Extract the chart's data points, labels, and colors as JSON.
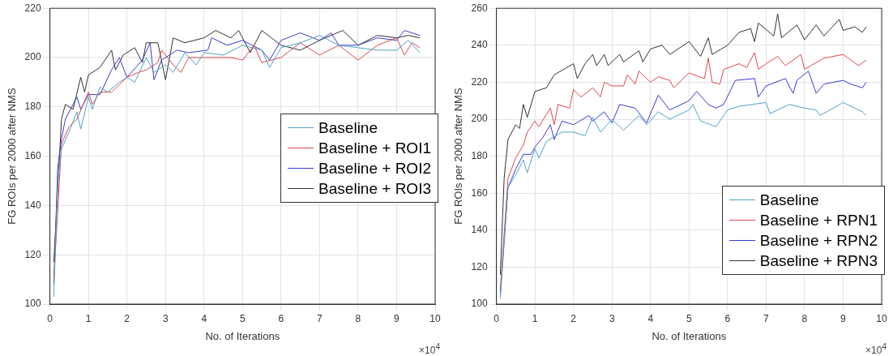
{
  "chart_data": [
    {
      "type": "line",
      "xlabel": "No. of Iterations",
      "ylabel": "FG ROIs per 2000 after NMS",
      "xlim": [
        0,
        10
      ],
      "xticks": [
        0,
        1,
        2,
        3,
        4,
        5,
        6,
        7,
        8,
        9,
        10
      ],
      "ylim": [
        100,
        220
      ],
      "yticks": [
        100,
        120,
        140,
        160,
        180,
        200,
        220
      ],
      "grid": true,
      "legend": "right",
      "annotations": [
        "×10$^{4}$"
      ],
      "series": [
        {
          "name": "Baseline",
          "color": "#4fa3c7",
          "x": [
            0.1,
            0.2,
            0.3,
            0.5,
            0.7,
            0.8,
            1.0,
            1.1,
            1.3,
            1.5,
            1.8,
            2.0,
            2.2,
            2.5,
            2.7,
            3.0,
            3.2,
            3.5,
            3.8,
            4.0,
            4.5,
            5.0,
            5.5,
            5.7,
            6.0,
            6.5,
            7.0,
            7.5,
            8.0,
            8.5,
            9.0,
            9.3,
            9.6
          ],
          "values": [
            103,
            150,
            163,
            170,
            178,
            171,
            184,
            179,
            188,
            186,
            190,
            192,
            190,
            200,
            194,
            197,
            194,
            202,
            197,
            202,
            201,
            205,
            203,
            196,
            204,
            206,
            209,
            205,
            204,
            203,
            203,
            207,
            202
          ]
        },
        {
          "name": "Baseline + ROI1",
          "color": "#e0474c",
          "x": [
            0.1,
            0.3,
            0.5,
            0.7,
            1.0,
            1.1,
            1.3,
            1.6,
            1.8,
            2.0,
            2.3,
            2.5,
            2.8,
            2.9,
            3.2,
            3.4,
            3.6,
            4.0,
            4.3,
            4.7,
            5.0,
            5.3,
            5.5,
            6.0,
            6.5,
            7.0,
            7.5,
            8.0,
            8.5,
            9.0,
            9.2,
            9.4,
            9.6
          ],
          "values": [
            110,
            165,
            172,
            175,
            186,
            181,
            186,
            186,
            189,
            192,
            194,
            195,
            198,
            203,
            197,
            194,
            200,
            200,
            200,
            200,
            199,
            205,
            198,
            200,
            206,
            201,
            205,
            199,
            205,
            208,
            201,
            206,
            204
          ]
        },
        {
          "name": "Baseline + ROI2",
          "color": "#3b3bd6",
          "x": [
            0.1,
            0.2,
            0.3,
            0.4,
            0.7,
            0.8,
            1.0,
            1.3,
            1.6,
            1.8,
            2.0,
            2.4,
            2.6,
            2.7,
            2.9,
            3.3,
            3.6,
            4.1,
            4.2,
            4.6,
            5.0,
            5.5,
            5.7,
            6.0,
            6.5,
            7.0,
            7.3,
            7.5,
            8.0,
            8.5,
            9.0,
            9.2,
            9.6
          ],
          "values": [
            108,
            155,
            167,
            175,
            184,
            179,
            185,
            185,
            195,
            200,
            192,
            199,
            206,
            191,
            199,
            203,
            202,
            203,
            208,
            205,
            207,
            203,
            199,
            207,
            210,
            207,
            210,
            205,
            205,
            208,
            207,
            211,
            209
          ]
        },
        {
          "name": "Baseline + ROI3",
          "color": "#333333",
          "x": [
            0.1,
            0.3,
            0.4,
            0.6,
            0.8,
            0.9,
            1.0,
            1.3,
            1.6,
            1.7,
            1.9,
            2.2,
            2.4,
            2.5,
            2.8,
            3.0,
            3.2,
            3.5,
            4.0,
            4.3,
            4.7,
            4.9,
            5.2,
            5.5,
            6.0,
            6.5,
            7.0,
            7.6,
            8.0,
            8.5,
            9.0,
            9.3,
            9.6
          ],
          "values": [
            117,
            175,
            181,
            179,
            192,
            186,
            193,
            196,
            203,
            195,
            201,
            204,
            198,
            206,
            206,
            191,
            208,
            206,
            208,
            211,
            208,
            211,
            202,
            211,
            205,
            203,
            207,
            211,
            205,
            209,
            208,
            209,
            208
          ]
        }
      ]
    },
    {
      "type": "line",
      "xlabel": "No. of Iterations",
      "ylabel": "FG ROIs per 2000 after NMS",
      "xlim": [
        0,
        10
      ],
      "xticks": [
        0,
        1,
        2,
        3,
        4,
        5,
        6,
        7,
        8,
        9,
        10
      ],
      "ylim": [
        100,
        260
      ],
      "yticks": [
        100,
        120,
        140,
        160,
        180,
        200,
        220,
        240,
        260
      ],
      "grid": true,
      "legend": "bottom right",
      "annotations": [
        "×10$^{4}$"
      ],
      "series": [
        {
          "name": "Baseline",
          "color": "#4fa3c7",
          "x": [
            0.1,
            0.3,
            0.5,
            0.7,
            0.8,
            1.0,
            1.1,
            1.3,
            1.7,
            2.0,
            2.3,
            2.5,
            2.7,
            3.0,
            3.3,
            3.7,
            3.9,
            4.2,
            4.5,
            5.0,
            5.1,
            5.3,
            5.7,
            6.0,
            6.3,
            7.0,
            7.1,
            7.6,
            8.0,
            8.3,
            8.4,
            9.0,
            9.5,
            9.6
          ],
          "values": [
            103,
            163,
            170,
            178,
            171,
            184,
            179,
            188,
            193,
            193,
            191,
            201,
            193,
            200,
            194,
            202,
            197,
            204,
            200,
            205,
            208,
            199,
            196,
            205,
            207,
            209,
            203,
            208,
            206,
            205,
            202,
            209,
            204,
            202
          ]
        },
        {
          "name": "Baseline + RPN1",
          "color": "#e0474c",
          "x": [
            0.1,
            0.3,
            0.5,
            0.7,
            0.8,
            1.0,
            1.1,
            1.4,
            1.5,
            1.6,
            1.9,
            2.0,
            2.2,
            2.5,
            2.7,
            2.8,
            3.0,
            3.3,
            3.4,
            3.6,
            3.7,
            4.0,
            4.2,
            4.5,
            4.6,
            5.0,
            5.4,
            5.5,
            5.6,
            5.8,
            5.9,
            6.3,
            6.5,
            6.7,
            6.8,
            7.0,
            7.3,
            7.5,
            7.9,
            8.0,
            8.5,
            9.0,
            9.4,
            9.6
          ],
          "values": [
            108,
            168,
            179,
            186,
            193,
            199,
            196,
            206,
            197,
            208,
            206,
            216,
            212,
            217,
            212,
            220,
            218,
            218,
            224,
            219,
            226,
            220,
            223,
            221,
            217,
            225,
            222,
            233,
            220,
            219,
            227,
            230,
            228,
            236,
            227,
            230,
            234,
            229,
            235,
            227,
            233,
            235,
            229,
            232
          ]
        },
        {
          "name": "Baseline + RPN2",
          "color": "#3b3bd6",
          "x": [
            0.1,
            0.3,
            0.5,
            0.7,
            0.9,
            1.0,
            1.2,
            1.4,
            1.5,
            1.7,
            2.0,
            2.4,
            2.5,
            2.8,
            3.0,
            3.2,
            3.6,
            3.9,
            4.2,
            4.5,
            5.0,
            5.2,
            5.5,
            5.7,
            5.9,
            6.2,
            6.7,
            6.8,
            7.0,
            7.5,
            7.7,
            7.8,
            8.1,
            8.3,
            8.5,
            9.0,
            9.2,
            9.5,
            9.6
          ],
          "values": [
            105,
            163,
            173,
            181,
            181,
            185,
            190,
            197,
            189,
            199,
            197,
            202,
            199,
            204,
            198,
            208,
            206,
            198,
            213,
            205,
            210,
            215,
            208,
            206,
            208,
            221,
            222,
            212,
            218,
            222,
            214,
            221,
            226,
            214,
            219,
            221,
            219,
            217,
            220
          ]
        },
        {
          "name": "Baseline + RPN3",
          "color": "#333333",
          "x": [
            0.1,
            0.2,
            0.3,
            0.5,
            0.6,
            0.7,
            0.8,
            1.0,
            1.3,
            1.5,
            2.0,
            2.1,
            2.3,
            2.5,
            2.6,
            2.8,
            2.9,
            3.2,
            3.3,
            3.7,
            3.8,
            4.0,
            4.3,
            4.5,
            5.0,
            5.3,
            5.5,
            5.6,
            6.0,
            6.3,
            6.6,
            6.7,
            6.8,
            7.2,
            7.3,
            7.4,
            7.8,
            8.0,
            8.3,
            8.5,
            8.9,
            9.0,
            9.3,
            9.5,
            9.6
          ],
          "values": [
            116,
            168,
            189,
            197,
            195,
            208,
            201,
            215,
            217,
            224,
            230,
            222,
            230,
            235,
            229,
            235,
            229,
            235,
            231,
            237,
            231,
            238,
            240,
            235,
            242,
            234,
            244,
            235,
            240,
            247,
            249,
            242,
            252,
            245,
            257,
            244,
            251,
            243,
            251,
            245,
            254,
            248,
            250,
            247,
            250
          ]
        }
      ]
    }
  ]
}
